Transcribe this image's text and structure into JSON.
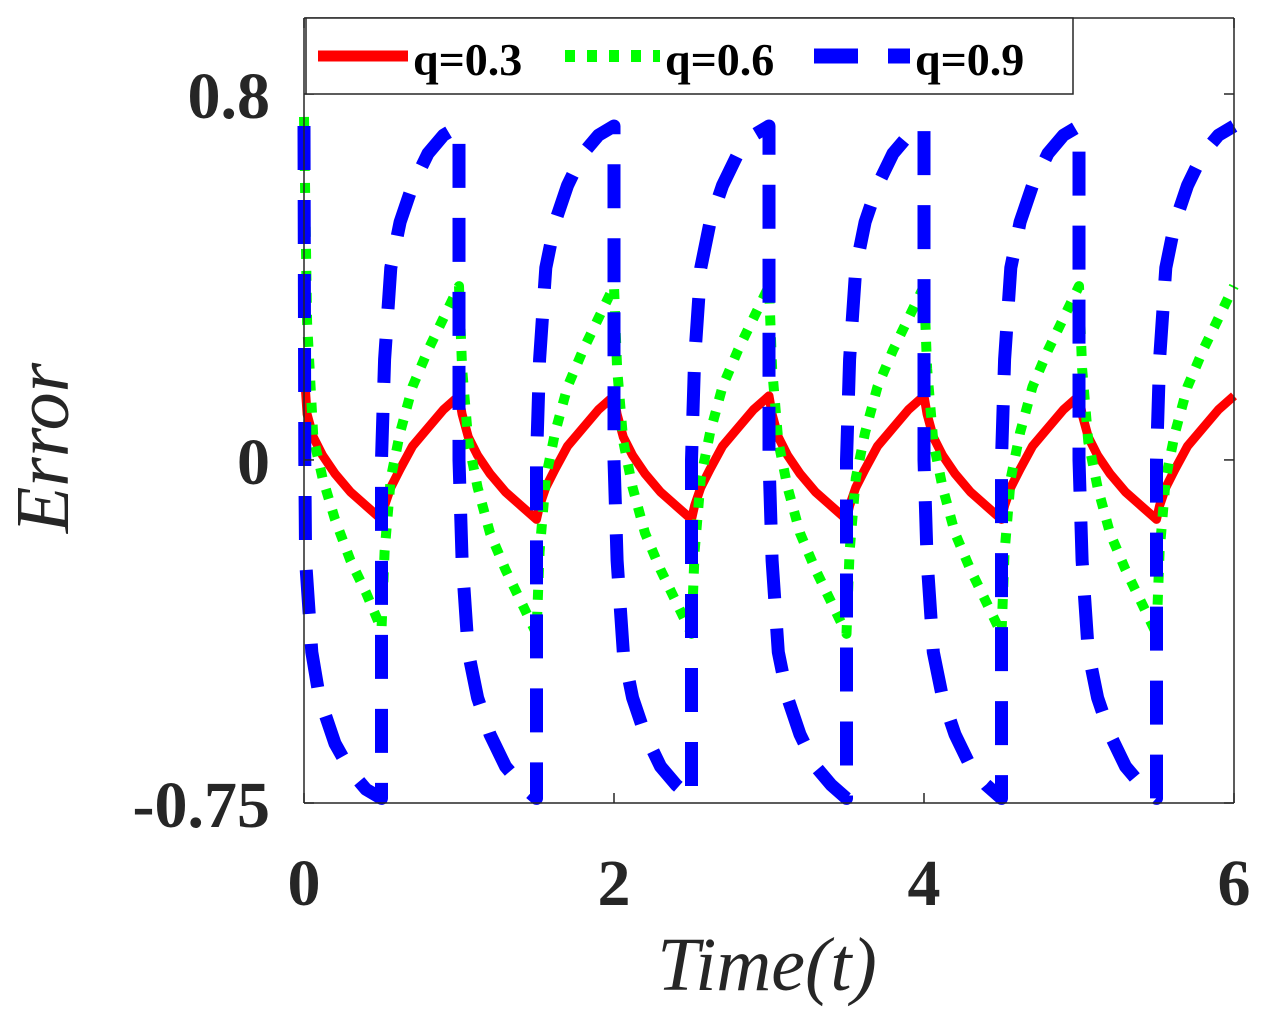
{
  "chart_data": {
    "type": "line",
    "xlabel": "Time(t)",
    "ylabel": "Error",
    "xlim": [
      0,
      6
    ],
    "ylim": [
      -0.75,
      0.8
    ],
    "xticks": [
      "0",
      "2",
      "4",
      "6"
    ],
    "yticks": [
      "-0.75",
      "0",
      "0.8"
    ],
    "ytick_values": [
      -0.75,
      0,
      0.8
    ],
    "grid": false,
    "legend_position": "top",
    "period": 1,
    "series": [
      {
        "name": "q=0.3",
        "color": "#ff0000",
        "style": "solid",
        "x": [
          0.0,
          0.02,
          0.06,
          0.12,
          0.2,
          0.3,
          0.4,
          0.5,
          0.52,
          0.56,
          0.62,
          0.7,
          0.8,
          0.9,
          1.0,
          1.02,
          1.06,
          1.12,
          1.2,
          1.3,
          1.4,
          1.5,
          1.52,
          1.56,
          1.62,
          1.7,
          1.8,
          1.9,
          2.0,
          2.02,
          2.06,
          2.12,
          2.2,
          2.3,
          2.4,
          2.5,
          2.52,
          2.56,
          2.62,
          2.7,
          2.8,
          2.9,
          3.0,
          3.02,
          3.06,
          3.12,
          3.2,
          3.3,
          3.4,
          3.5,
          3.52,
          3.56,
          3.62,
          3.7,
          3.8,
          3.9,
          4.0,
          4.02,
          4.06,
          4.12,
          4.2,
          4.3,
          4.4,
          4.5,
          4.52,
          4.56,
          4.62,
          4.7,
          4.8,
          4.9,
          5.0,
          5.02,
          5.06,
          5.12,
          5.2,
          5.3,
          5.4,
          5.5,
          5.52,
          5.56,
          5.62,
          5.7,
          5.8,
          5.9,
          6.0
        ],
        "y": [
          0.2,
          0.1,
          0.05,
          0.01,
          -0.03,
          -0.07,
          -0.1,
          -0.13,
          -0.1,
          -0.06,
          -0.02,
          0.03,
          0.07,
          0.11,
          0.14,
          0.1,
          0.05,
          0.01,
          -0.03,
          -0.07,
          -0.1,
          -0.13,
          -0.1,
          -0.06,
          -0.02,
          0.03,
          0.07,
          0.11,
          0.14,
          0.1,
          0.05,
          0.01,
          -0.03,
          -0.07,
          -0.1,
          -0.13,
          -0.1,
          -0.06,
          -0.02,
          0.03,
          0.07,
          0.11,
          0.14,
          0.1,
          0.05,
          0.01,
          -0.03,
          -0.07,
          -0.1,
          -0.13,
          -0.1,
          -0.06,
          -0.02,
          0.03,
          0.07,
          0.11,
          0.14,
          0.1,
          0.05,
          0.01,
          -0.03,
          -0.07,
          -0.1,
          -0.13,
          -0.1,
          -0.06,
          -0.02,
          0.03,
          0.07,
          0.11,
          0.14,
          0.1,
          0.05,
          0.01,
          -0.03,
          -0.07,
          -0.1,
          -0.13,
          -0.1,
          -0.06,
          -0.02,
          0.03,
          0.07,
          0.11,
          0.14
        ]
      },
      {
        "name": "q=0.6",
        "color": "#00ff00",
        "style": "dotted",
        "x": [
          0.0,
          0.02,
          0.06,
          0.12,
          0.2,
          0.3,
          0.4,
          0.5,
          0.52,
          0.56,
          0.62,
          0.7,
          0.8,
          0.9,
          1.0,
          1.02,
          1.06,
          1.12,
          1.2,
          1.3,
          1.4,
          1.5,
          1.52,
          1.56,
          1.62,
          1.7,
          1.8,
          1.9,
          2.0,
          2.02,
          2.06,
          2.12,
          2.2,
          2.3,
          2.4,
          2.5,
          2.52,
          2.56,
          2.62,
          2.7,
          2.8,
          2.9,
          3.0,
          3.02,
          3.06,
          3.12,
          3.2,
          3.3,
          3.4,
          3.5,
          3.52,
          3.56,
          3.62,
          3.7,
          3.8,
          3.9,
          4.0,
          4.02,
          4.06,
          4.12,
          4.2,
          4.3,
          4.4,
          4.5,
          4.52,
          4.56,
          4.62,
          4.7,
          4.8,
          4.9,
          5.0,
          5.02,
          5.06,
          5.12,
          5.2,
          5.3,
          5.4,
          5.5,
          5.52,
          5.56,
          5.62,
          5.7,
          5.8,
          5.9,
          6.0
        ],
        "y": [
          0.75,
          0.3,
          0.05,
          -0.04,
          -0.13,
          -0.22,
          -0.29,
          -0.37,
          -0.2,
          -0.04,
          0.06,
          0.16,
          0.24,
          0.31,
          0.38,
          0.2,
          0.04,
          -0.06,
          -0.16,
          -0.24,
          -0.31,
          -0.38,
          -0.2,
          -0.04,
          0.06,
          0.16,
          0.24,
          0.31,
          0.38,
          0.2,
          0.04,
          -0.06,
          -0.16,
          -0.24,
          -0.31,
          -0.38,
          -0.2,
          -0.04,
          0.06,
          0.16,
          0.24,
          0.31,
          0.38,
          0.2,
          0.04,
          -0.06,
          -0.16,
          -0.24,
          -0.31,
          -0.38,
          -0.2,
          -0.04,
          0.06,
          0.16,
          0.24,
          0.31,
          0.38,
          0.2,
          0.04,
          -0.06,
          -0.16,
          -0.24,
          -0.31,
          -0.38,
          -0.2,
          -0.04,
          0.06,
          0.16,
          0.24,
          0.31,
          0.38,
          0.2,
          0.04,
          -0.06,
          -0.16,
          -0.24,
          -0.31,
          -0.38,
          -0.2,
          -0.04,
          0.06,
          0.16,
          0.24,
          0.31,
          0.38
        ]
      },
      {
        "name": "q=0.9",
        "color": "#0000ff",
        "style": "dashed",
        "x": [
          0.0,
          0.005,
          0.01,
          0.05,
          0.1,
          0.2,
          0.3,
          0.4,
          0.5,
          0.5,
          0.52,
          0.56,
          0.62,
          0.7,
          0.8,
          0.9,
          1.0,
          1.0,
          1.02,
          1.06,
          1.12,
          1.2,
          1.3,
          1.4,
          1.5,
          1.5,
          1.52,
          1.56,
          1.62,
          1.7,
          1.8,
          1.9,
          2.0,
          2.0,
          2.02,
          2.06,
          2.12,
          2.2,
          2.3,
          2.4,
          2.5,
          2.5,
          2.52,
          2.56,
          2.62,
          2.7,
          2.8,
          2.9,
          3.0,
          3.0,
          3.02,
          3.06,
          3.12,
          3.2,
          3.3,
          3.4,
          3.5,
          3.5,
          3.52,
          3.56,
          3.62,
          3.7,
          3.8,
          3.9,
          4.0,
          4.0,
          4.02,
          4.06,
          4.12,
          4.2,
          4.3,
          4.4,
          4.5,
          4.5,
          4.52,
          4.56,
          4.62,
          4.7,
          4.8,
          4.9,
          5.0,
          5.0,
          5.02,
          5.06,
          5.12,
          5.2,
          5.3,
          5.4,
          5.5,
          5.5,
          5.52,
          5.56,
          5.62,
          5.7,
          5.8,
          5.9,
          6.0
        ],
        "y": [
          0.73,
          0.0,
          -0.22,
          -0.42,
          -0.52,
          -0.62,
          -0.68,
          -0.72,
          -0.74,
          0.0,
          0.22,
          0.42,
          0.52,
          0.6,
          0.67,
          0.71,
          0.73,
          0.0,
          -0.22,
          -0.42,
          -0.52,
          -0.6,
          -0.67,
          -0.71,
          -0.74,
          0.0,
          0.22,
          0.42,
          0.52,
          0.6,
          0.67,
          0.71,
          0.73,
          0.0,
          -0.22,
          -0.42,
          -0.52,
          -0.6,
          -0.67,
          -0.71,
          -0.74,
          0.0,
          0.22,
          0.42,
          0.52,
          0.6,
          0.67,
          0.71,
          0.73,
          0.0,
          -0.22,
          -0.42,
          -0.52,
          -0.6,
          -0.67,
          -0.71,
          -0.74,
          0.0,
          0.22,
          0.42,
          0.52,
          0.6,
          0.67,
          0.71,
          0.73,
          0.0,
          -0.22,
          -0.42,
          -0.52,
          -0.6,
          -0.67,
          -0.71,
          -0.74,
          0.0,
          0.22,
          0.42,
          0.52,
          0.6,
          0.67,
          0.71,
          0.73,
          0.0,
          -0.22,
          -0.42,
          -0.52,
          -0.6,
          -0.67,
          -0.71,
          -0.74,
          0.0,
          0.22,
          0.42,
          0.52,
          0.6,
          0.67,
          0.71,
          0.73
        ]
      }
    ]
  }
}
